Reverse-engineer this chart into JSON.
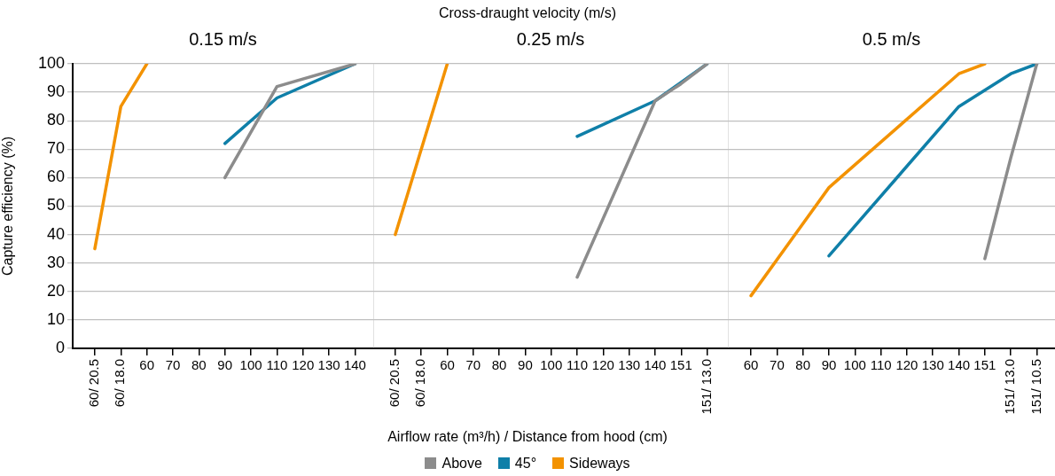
{
  "chart_data": [
    {
      "type": "line",
      "title": "0.15 m/s",
      "annotations": [
        "Cross-draught velocity (m/s)"
      ],
      "ylabel": "Capture efficiency (%)",
      "categories": [
        "60/ 20.5",
        "60/ 18.0",
        "60",
        "70",
        "80",
        "90",
        "100",
        "110",
        "120",
        "130",
        "140"
      ],
      "ylim": [
        0,
        100
      ],
      "yticks": [
        0,
        10,
        20,
        30,
        40,
        50,
        60,
        70,
        80,
        90,
        100
      ],
      "grid": "y",
      "series": [
        {
          "color": "#8c8c8c",
          "values": [
            null,
            null,
            null,
            null,
            null,
            60,
            null,
            92,
            null,
            null,
            100
          ]
        },
        {
          "color": "#0f7fa8",
          "values": [
            null,
            null,
            null,
            null,
            null,
            72,
            null,
            88,
            null,
            null,
            100
          ]
        },
        {
          "color": "#f39200",
          "values": [
            35,
            85,
            100,
            null,
            null,
            null,
            null,
            null,
            null,
            null,
            null
          ]
        }
      ]
    },
    {
      "type": "line",
      "title": "0.25 m/s",
      "xlabel": "Airflow rate (m³/h) / Distance from hood (cm)",
      "legend": "bottom",
      "tick_labels": "x",
      "categories": [
        "60/ 20.5",
        "60/ 18.0",
        "60",
        "70",
        "80",
        "90",
        "100",
        "110",
        "120",
        "130",
        "140",
        "151",
        "151/ 13.0"
      ],
      "ylim": [
        0,
        100
      ],
      "yticks": [
        0,
        10,
        20,
        30,
        40,
        50,
        60,
        70,
        80,
        90,
        100
      ],
      "grid": "y",
      "series": [
        {
          "name": "Above",
          "color": "#8c8c8c",
          "values": [
            null,
            null,
            null,
            null,
            null,
            null,
            null,
            25,
            null,
            null,
            87,
            93,
            100
          ]
        },
        {
          "name": "45°",
          "color": "#0f7fa8",
          "values": [
            null,
            null,
            null,
            null,
            null,
            null,
            null,
            74.5,
            null,
            null,
            87,
            null,
            100
          ]
        },
        {
          "name": "Sideways",
          "color": "#f39200",
          "values": [
            40,
            null,
            100,
            null,
            null,
            null,
            null,
            null,
            null,
            null,
            null,
            null,
            null
          ]
        }
      ]
    },
    {
      "type": "line",
      "title": "0.5 m/s",
      "tick_labels": "x",
      "categories": [
        "60",
        "70",
        "80",
        "90",
        "100",
        "110",
        "120",
        "130",
        "140",
        "151",
        "151/ 13.0",
        "151/ 10.5"
      ],
      "ylim": [
        0,
        100
      ],
      "yticks": [
        0,
        10,
        20,
        30,
        40,
        50,
        60,
        70,
        80,
        90,
        100
      ],
      "grid": "y",
      "series": [
        {
          "color": "#8c8c8c",
          "values": [
            null,
            null,
            null,
            null,
            null,
            null,
            null,
            null,
            null,
            31.5,
            67,
            100
          ]
        },
        {
          "color": "#0f7fa8",
          "values": [
            null,
            null,
            null,
            32.5,
            null,
            null,
            null,
            null,
            85,
            null,
            96.5,
            100
          ]
        },
        {
          "color": "#f39200",
          "values": [
            18.5,
            null,
            null,
            56.5,
            null,
            null,
            null,
            null,
            96.5,
            100,
            null,
            null
          ]
        }
      ]
    }
  ]
}
